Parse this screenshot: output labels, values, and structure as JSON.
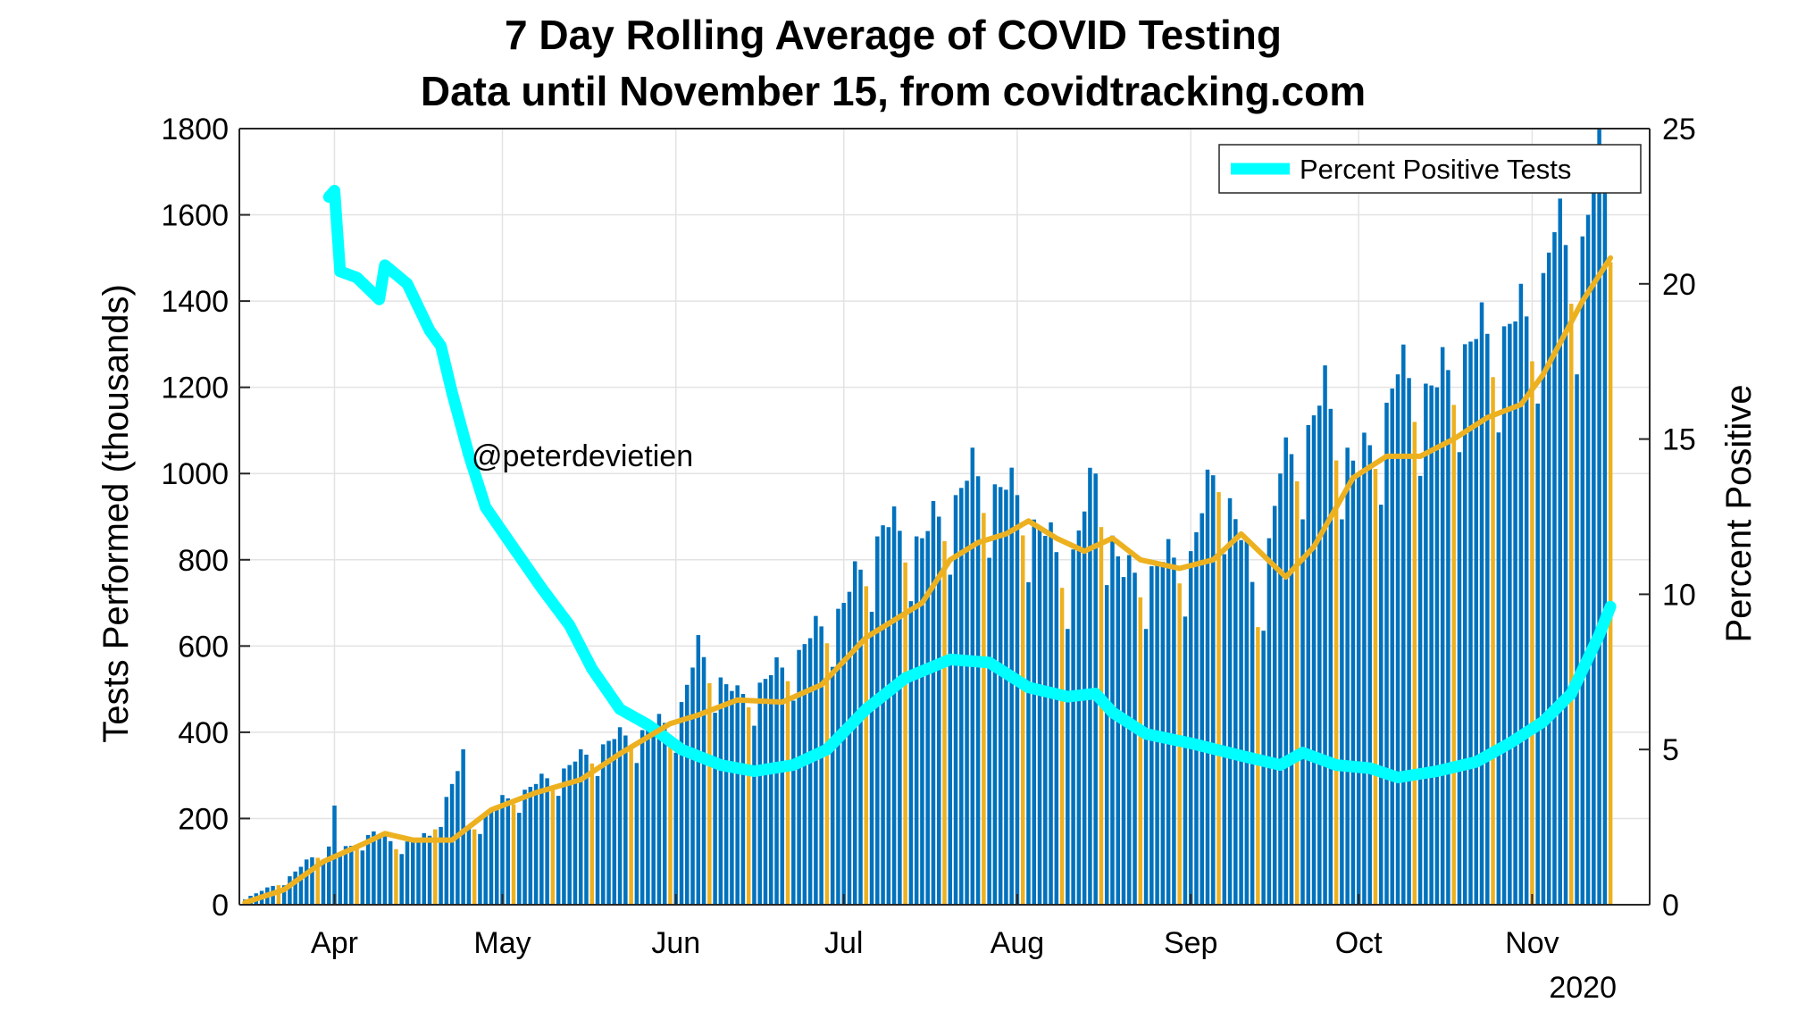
{
  "colors": {
    "bar": "#0072BD",
    "bar_weekend": "#EDB120",
    "rolling_avg": "#EDB120",
    "percent_positive": "#00FFFF",
    "grid": "#e3e3e3",
    "axis": "#262626"
  },
  "chart_data": {
    "type": "bar",
    "title": "7 Day Rolling Average of COVID Testing",
    "subtitle": "Data until November 15, from covidtracking.com",
    "ylabel": "Tests Performed (thousands)",
    "y2label": "Percent Positive",
    "ylim": [
      0,
      1800
    ],
    "yticks": [
      0,
      200,
      400,
      600,
      800,
      1000,
      1200,
      1400,
      1600,
      1800
    ],
    "y2lim": [
      0,
      25
    ],
    "y2ticks": [
      0,
      5,
      10,
      15,
      20,
      25
    ],
    "xlim": [
      "2020-03-15",
      "2020-11-22"
    ],
    "xticks": [
      {
        "date": "2020-04-01",
        "label": "Apr"
      },
      {
        "date": "2020-05-01",
        "label": "May"
      },
      {
        "date": "2020-06-01",
        "label": "Jun"
      },
      {
        "date": "2020-07-01",
        "label": "Jul"
      },
      {
        "date": "2020-08-01",
        "label": "Aug"
      },
      {
        "date": "2020-09-01",
        "label": "Sep"
      },
      {
        "date": "2020-10-01",
        "label": "Oct"
      },
      {
        "date": "2020-11-01",
        "label": "Nov"
      }
    ],
    "year_label": "2020",
    "annotation": "@peterdevietien",
    "grid": true,
    "legend": {
      "position": "top-right",
      "entries": [
        "Percent Positive Tests"
      ]
    },
    "daily_tests": {
      "start_date": "2020-03-16",
      "end_date": "2020-11-15",
      "anchors": [
        [
          "2020-03-16",
          15
        ],
        [
          "2020-03-23",
          55
        ],
        [
          "2020-03-28",
          110
        ],
        [
          "2020-03-31",
          135
        ],
        [
          "2020-04-01",
          230
        ],
        [
          "2020-04-02",
          120
        ],
        [
          "2020-04-08",
          170
        ],
        [
          "2020-04-12",
          140
        ],
        [
          "2020-04-18",
          160
        ],
        [
          "2020-04-24",
          340
        ],
        [
          "2020-04-25",
          180
        ],
        [
          "2020-05-01",
          240
        ],
        [
          "2020-05-10",
          300
        ],
        [
          "2020-05-20",
          380
        ],
        [
          "2020-06-01",
          430
        ],
        [
          "2020-06-05",
          590
        ],
        [
          "2020-06-12",
          480
        ],
        [
          "2020-06-20",
          550
        ],
        [
          "2020-07-01",
          700
        ],
        [
          "2020-07-08",
          880
        ],
        [
          "2020-07-15",
          850
        ],
        [
          "2020-07-24",
          1000
        ],
        [
          "2020-08-01",
          950
        ],
        [
          "2020-08-10",
          780
        ],
        [
          "2020-08-15",
          1000
        ],
        [
          "2020-08-20",
          760
        ],
        [
          "2020-09-01",
          820
        ],
        [
          "2020-09-06",
          1040
        ],
        [
          "2020-09-13",
          700
        ],
        [
          "2020-09-17",
          1000
        ],
        [
          "2020-09-25",
          1180
        ],
        [
          "2020-10-01",
          1000
        ],
        [
          "2020-10-08",
          1230
        ],
        [
          "2020-10-15",
          1200
        ],
        [
          "2020-10-20",
          1300
        ],
        [
          "2020-10-25",
          1330
        ],
        [
          "2020-11-01",
          1370
        ],
        [
          "2020-11-05",
          1560
        ],
        [
          "2020-11-09",
          1500
        ],
        [
          "2020-11-13",
          1700
        ],
        [
          "2020-11-15",
          1620
        ]
      ]
    },
    "series": [
      {
        "name": "7-day rolling average",
        "points": [
          [
            "2020-03-16",
            5
          ],
          [
            "2020-03-23",
            35
          ],
          [
            "2020-03-30",
            100
          ],
          [
            "2020-04-06",
            140
          ],
          [
            "2020-04-10",
            165
          ],
          [
            "2020-04-15",
            150
          ],
          [
            "2020-04-22",
            150
          ],
          [
            "2020-04-29",
            220
          ],
          [
            "2020-05-07",
            260
          ],
          [
            "2020-05-15",
            290
          ],
          [
            "2020-05-22",
            350
          ],
          [
            "2020-05-31",
            420
          ],
          [
            "2020-06-05",
            440
          ],
          [
            "2020-06-12",
            475
          ],
          [
            "2020-06-20",
            470
          ],
          [
            "2020-06-27",
            510
          ],
          [
            "2020-07-05",
            620
          ],
          [
            "2020-07-10",
            660
          ],
          [
            "2020-07-15",
            700
          ],
          [
            "2020-07-20",
            800
          ],
          [
            "2020-07-25",
            840
          ],
          [
            "2020-07-30",
            860
          ],
          [
            "2020-08-03",
            890
          ],
          [
            "2020-08-08",
            850
          ],
          [
            "2020-08-13",
            820
          ],
          [
            "2020-08-18",
            850
          ],
          [
            "2020-08-23",
            800
          ],
          [
            "2020-08-30",
            780
          ],
          [
            "2020-09-05",
            800
          ],
          [
            "2020-09-10",
            860
          ],
          [
            "2020-09-18",
            760
          ],
          [
            "2020-09-23",
            830
          ],
          [
            "2020-09-30",
            990
          ],
          [
            "2020-10-06",
            1040
          ],
          [
            "2020-10-12",
            1040
          ],
          [
            "2020-10-18",
            1080
          ],
          [
            "2020-10-24",
            1130
          ],
          [
            "2020-10-30",
            1160
          ],
          [
            "2020-11-03",
            1230
          ],
          [
            "2020-11-10",
            1400
          ],
          [
            "2020-11-15",
            1500
          ]
        ]
      },
      {
        "name": "Percent Positive Tests",
        "axis": "right",
        "points": [
          [
            "2020-03-31",
            22.8
          ],
          [
            "2020-04-01",
            23.0
          ],
          [
            "2020-04-02",
            20.4
          ],
          [
            "2020-04-05",
            20.2
          ],
          [
            "2020-04-09",
            19.5
          ],
          [
            "2020-04-10",
            20.6
          ],
          [
            "2020-04-14",
            20.0
          ],
          [
            "2020-04-18",
            18.5
          ],
          [
            "2020-04-20",
            18.0
          ],
          [
            "2020-04-22",
            16.5
          ],
          [
            "2020-04-25",
            14.5
          ],
          [
            "2020-04-28",
            12.8
          ],
          [
            "2020-05-03",
            11.5
          ],
          [
            "2020-05-08",
            10.2
          ],
          [
            "2020-05-13",
            9.0
          ],
          [
            "2020-05-17",
            7.6
          ],
          [
            "2020-05-22",
            6.3
          ],
          [
            "2020-05-27",
            5.8
          ],
          [
            "2020-06-02",
            5.0
          ],
          [
            "2020-06-09",
            4.5
          ],
          [
            "2020-06-15",
            4.3
          ],
          [
            "2020-06-22",
            4.5
          ],
          [
            "2020-06-28",
            5.0
          ],
          [
            "2020-07-05",
            6.3
          ],
          [
            "2020-07-12",
            7.3
          ],
          [
            "2020-07-20",
            7.9
          ],
          [
            "2020-07-27",
            7.8
          ],
          [
            "2020-08-03",
            7.0
          ],
          [
            "2020-08-10",
            6.7
          ],
          [
            "2020-08-15",
            6.8
          ],
          [
            "2020-08-18",
            6.2
          ],
          [
            "2020-08-24",
            5.5
          ],
          [
            "2020-09-01",
            5.2
          ],
          [
            "2020-09-10",
            4.8
          ],
          [
            "2020-09-17",
            4.5
          ],
          [
            "2020-09-21",
            4.9
          ],
          [
            "2020-09-27",
            4.5
          ],
          [
            "2020-10-03",
            4.4
          ],
          [
            "2020-10-08",
            4.1
          ],
          [
            "2020-10-15",
            4.3
          ],
          [
            "2020-10-22",
            4.6
          ],
          [
            "2020-10-28",
            5.2
          ],
          [
            "2020-11-03",
            5.9
          ],
          [
            "2020-11-08",
            6.8
          ],
          [
            "2020-11-13",
            8.7
          ],
          [
            "2020-11-15",
            9.6
          ]
        ]
      }
    ]
  }
}
